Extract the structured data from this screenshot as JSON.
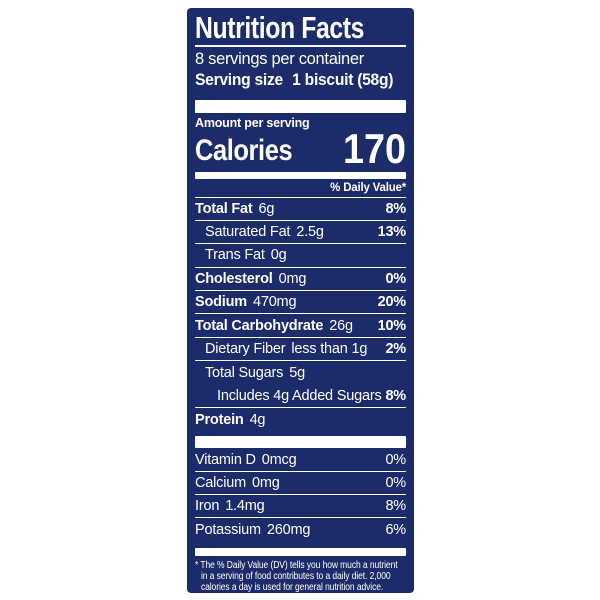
{
  "label": {
    "title": "Nutrition Facts",
    "servings_per_container": "8 servings per container",
    "serving_size_label": "Serving size",
    "serving_size_value": "1 biscuit (58g)",
    "amount_per_serving": "Amount per serving",
    "calories_label": "Calories",
    "calories_value": "170",
    "daily_value_header": "% Daily Value*",
    "colors": {
      "panel_navy": "#1c2b69",
      "text_white": "#ffffff"
    },
    "rows": [
      {
        "name": "Total Fat",
        "amount": "6g",
        "pct": "8%"
      },
      {
        "name": "Saturated Fat",
        "amount": "2.5g",
        "pct": "13%"
      },
      {
        "name": "Trans Fat",
        "amount": "0g",
        "pct": ""
      },
      {
        "name": "Cholesterol",
        "amount": "0mg",
        "pct": "0%"
      },
      {
        "name": "Sodium",
        "amount": "470mg",
        "pct": "20%"
      },
      {
        "name": "Total Carbohydrate",
        "amount": "26g",
        "pct": "10%"
      },
      {
        "name": "Dietary Fiber",
        "amount": "less than 1g",
        "pct": "2%"
      },
      {
        "name": "Total Sugars",
        "amount": "5g",
        "pct": ""
      },
      {
        "name": "Includes 4g Added Sugars",
        "amount": "",
        "pct": "8%"
      },
      {
        "name": "Protein",
        "amount": "4g",
        "pct": ""
      }
    ],
    "vitamins": [
      {
        "name": "Vitamin D",
        "amount": "0mcg",
        "pct": "0%"
      },
      {
        "name": "Calcium",
        "amount": "0mg",
        "pct": "0%"
      },
      {
        "name": "Iron",
        "amount": "1.4mg",
        "pct": "8%"
      },
      {
        "name": "Potassium",
        "amount": "260mg",
        "pct": "6%"
      }
    ],
    "footnote_lines": [
      "* The % Daily Value (DV) tells you how much a nutrient",
      "in a serving of food contributes to a daily diet. 2,000",
      "calories a day is used for general nutrition advice."
    ]
  }
}
